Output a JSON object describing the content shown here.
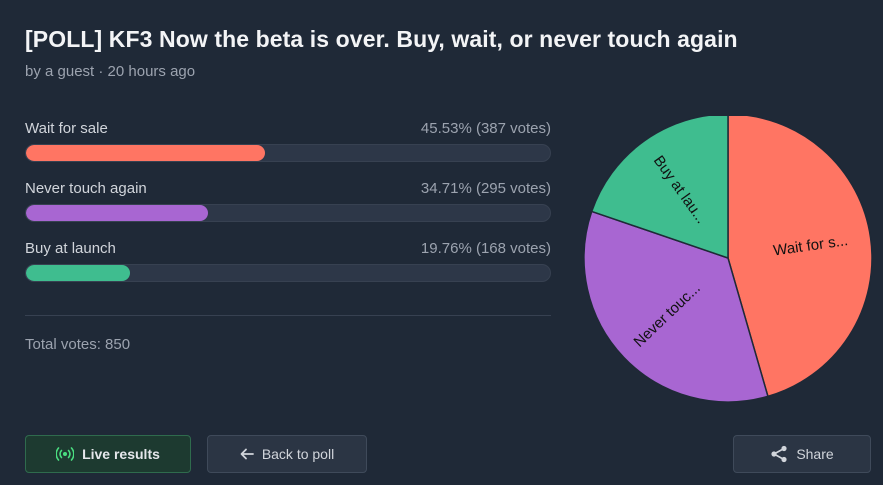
{
  "poll": {
    "title": "[POLL] KF3 Now the beta is over. Buy, wait, or never touch again",
    "meta": "by a guest · 20 hours ago",
    "options": [
      {
        "label": "Wait for sale",
        "stats": "45.53% (387 votes)",
        "percent": 45.53,
        "color": "#ff7563",
        "pie_label": "Wait for s..."
      },
      {
        "label": "Never touch again",
        "stats": "34.71% (295 votes)",
        "percent": 34.71,
        "color": "#a866d2",
        "pie_label": "Never touc..."
      },
      {
        "label": "Buy at launch",
        "stats": "19.76% (168 votes)",
        "percent": 19.76,
        "color": "#3fbd8f",
        "pie_label": "Buy at lau..."
      }
    ],
    "total": "Total votes: 850"
  },
  "buttons": {
    "live": "Live results",
    "back": "Back to poll",
    "share": "Share"
  },
  "icons": {
    "live": "broadcast-icon",
    "back": "arrow-left-icon",
    "share": "share-icon"
  }
}
